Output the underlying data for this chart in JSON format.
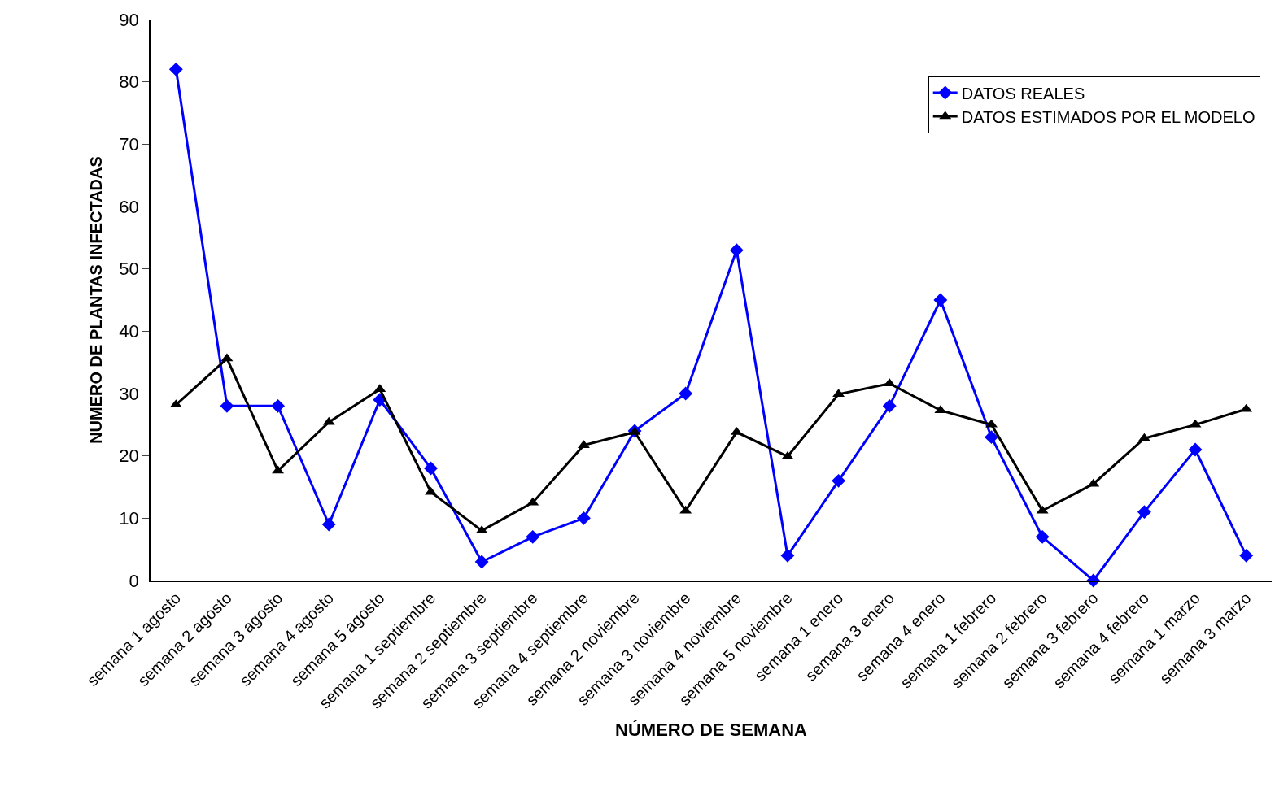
{
  "chart_data": {
    "type": "line",
    "xlabel": "NÚMERO DE SEMANA",
    "ylabel": "NUMERO DE PLANTAS INFECTADAS",
    "categories": [
      "semana 1 agosto",
      "semana 2 agosto",
      "semana 3 agosto",
      "semana 4 agosto",
      "semana 5 agosto",
      "semana 1 septiembre",
      "semana 2 septiembre",
      "semana 3 septiembre",
      "semana 4 septiembre",
      "semana 2 noviembre",
      "semana 3 noviembre",
      "semana 4 noviembre",
      "semana 5 noviembre",
      "semana 1 enero",
      "semana 3 enero",
      "semana 4 enero",
      "semana 1 febrero",
      "semana 2 febrero",
      "semana 3 febrero",
      "semana 4 febrero",
      "semana 1 marzo",
      "semana 3 marzo"
    ],
    "series": [
      {
        "name": "DATOS REALES",
        "color": "#0000ff",
        "marker": "diamond",
        "values": [
          82,
          28,
          28,
          9,
          29,
          18,
          3,
          7,
          10,
          24,
          30,
          53,
          4,
          16,
          28,
          45,
          23,
          7,
          0,
          11,
          21,
          4
        ]
      },
      {
        "name": "DATOS ESTIMADOS POR EL MODELO",
        "color": "#000000",
        "marker": "triangle",
        "values": [
          28.2,
          35.6,
          17.6,
          25.4,
          30.7,
          14.2,
          8,
          12.5,
          21.7,
          23.8,
          11.2,
          23.8,
          19.9,
          29.9,
          31.6,
          27.3,
          25,
          11.2,
          15.5,
          22.8,
          25,
          27.5
        ]
      }
    ],
    "ylim": [
      0,
      90
    ],
    "yticks": [
      0,
      10,
      20,
      30,
      40,
      50,
      60,
      70,
      80,
      90
    ],
    "legend": "top right",
    "line_style": "solid"
  }
}
